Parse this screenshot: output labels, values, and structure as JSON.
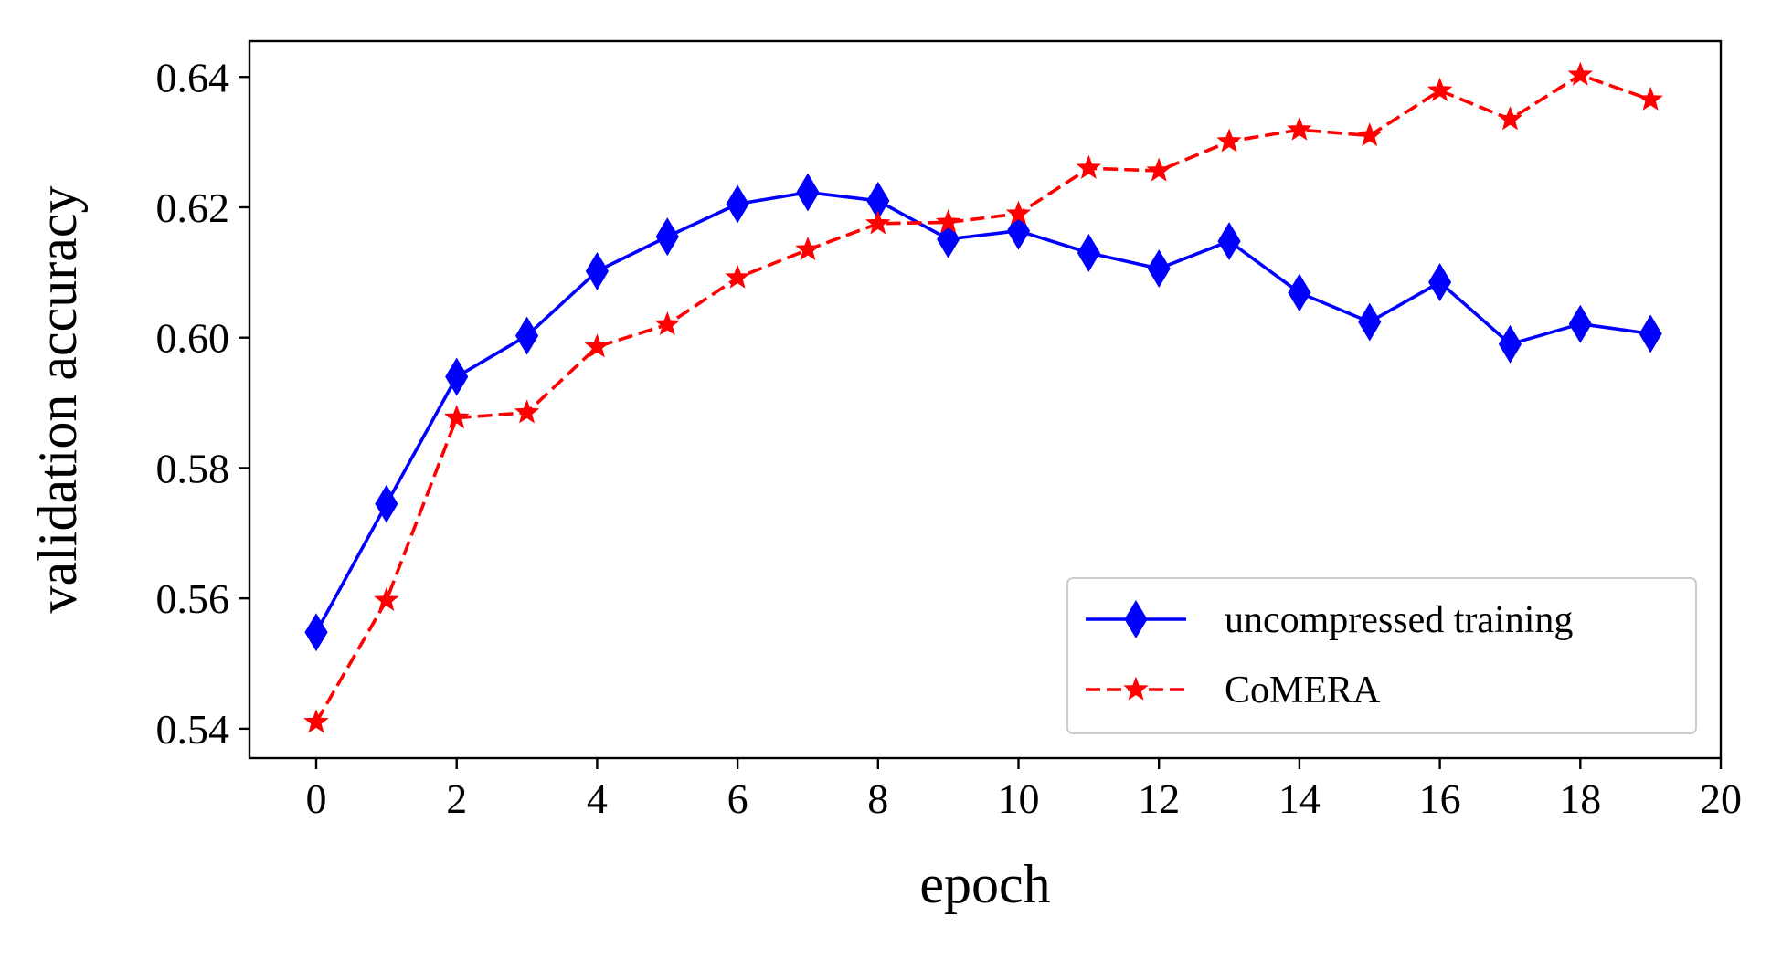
{
  "chart_data": {
    "type": "line",
    "title": "",
    "xlabel": "epoch",
    "ylabel": "validation accuracy",
    "xlim": [
      -0.95,
      20
    ],
    "ylim": [
      0.5355,
      0.6455
    ],
    "xticks": [
      0,
      2,
      4,
      6,
      8,
      10,
      12,
      14,
      16,
      18,
      20
    ],
    "xtick_labels": [
      "0",
      "2",
      "4",
      "6",
      "8",
      "10",
      "12",
      "14",
      "16",
      "18",
      "20"
    ],
    "yticks": [
      0.54,
      0.56,
      0.58,
      0.6,
      0.62,
      0.64
    ],
    "ytick_labels": [
      "0.54",
      "0.56",
      "0.58",
      "0.60",
      "0.62",
      "0.64"
    ],
    "grid": false,
    "legend_position": "lower-right",
    "x": [
      0,
      1,
      2,
      3,
      4,
      5,
      6,
      7,
      8,
      9,
      10,
      11,
      12,
      13,
      14,
      15,
      16,
      17,
      18,
      19
    ],
    "series": [
      {
        "name": "uncompressed training",
        "color": "#0000ff",
        "line_style": "solid",
        "marker": "diamond",
        "values": [
          0.5548,
          0.5745,
          0.594,
          0.6003,
          0.6102,
          0.6155,
          0.6205,
          0.6223,
          0.621,
          0.6151,
          0.6164,
          0.613,
          0.6106,
          0.6148,
          0.6069,
          0.6024,
          0.6085,
          0.599,
          0.6021,
          0.6006
        ]
      },
      {
        "name": "CoMERA",
        "color": "#ff0000",
        "line_style": "dashed",
        "marker": "star",
        "values": [
          0.541,
          0.5597,
          0.5877,
          0.5885,
          0.5986,
          0.602,
          0.6092,
          0.6135,
          0.6175,
          0.6177,
          0.619,
          0.626,
          0.6256,
          0.6301,
          0.6319,
          0.631,
          0.6379,
          0.6335,
          0.6403,
          0.6365
        ]
      }
    ]
  }
}
